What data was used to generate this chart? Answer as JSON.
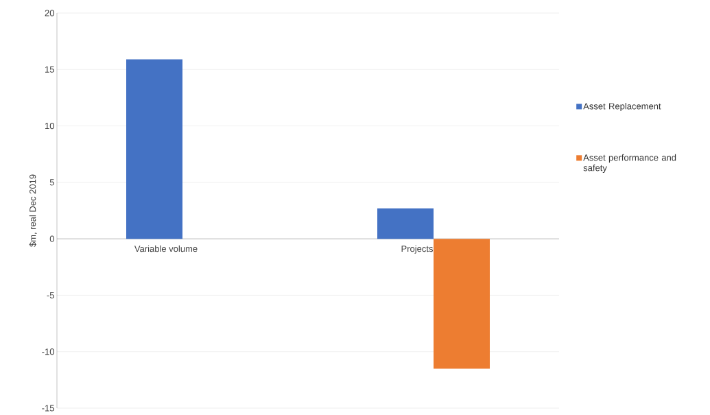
{
  "chart_data": {
    "type": "bar",
    "ylabel": "$m, real Dec 2019",
    "categories": [
      "Variable volume",
      "Projects"
    ],
    "series": [
      {
        "name": "Asset Replacement",
        "color": "#4472c4",
        "values": [
          15.9,
          2.7
        ]
      },
      {
        "name": "Asset performance and safety",
        "color": "#ed7d31",
        "values": [
          0,
          -11.5
        ]
      }
    ],
    "ylim": [
      -15,
      20
    ],
    "yticks": [
      -15,
      -10,
      -5,
      0,
      5,
      10,
      15,
      20
    ],
    "grid": "y",
    "legend": "right"
  }
}
